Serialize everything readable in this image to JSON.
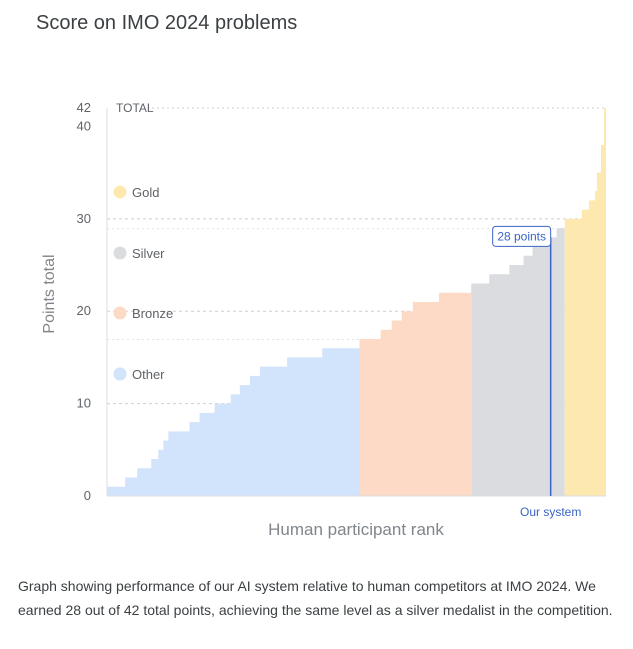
{
  "page": {
    "title": "Score on IMO 2024 problems"
  },
  "caption": "Graph showing performance of our AI system relative to human competitors at IMO 2024. We earned 28 out of 42 total points, achieving the same level as a silver medalist in the competition.",
  "colors": {
    "gold": "#fde9b0",
    "silver": "#dadce0",
    "bronze": "#fcdac6",
    "other": "#d2e3fc",
    "system": "#3b63c4",
    "grid": "#cfcfcf",
    "text": "#5f6368"
  },
  "chart_data": {
    "type": "bar",
    "title": "Score on IMO 2024 problems",
    "xlabel": "Human participant rank",
    "ylabel": "Points total",
    "ylim": [
      0,
      42
    ],
    "yticks": [
      "0",
      "10",
      "20",
      "30",
      "40",
      "42"
    ],
    "total_label": "TOTAL",
    "legend": [
      {
        "name": "Gold",
        "color": "#fde9b0"
      },
      {
        "name": "Silver",
        "color": "#dadce0"
      },
      {
        "name": "Bronze",
        "color": "#fcdac6"
      },
      {
        "name": "Other",
        "color": "#d2e3fc"
      }
    ],
    "series": [
      {
        "name": "Other",
        "steps": [
          [
            0,
            1
          ],
          [
            1.8,
            1
          ],
          [
            1.8,
            2
          ],
          [
            3,
            2
          ],
          [
            3,
            3
          ],
          [
            4.4,
            3
          ],
          [
            4.4,
            4
          ],
          [
            5.1,
            4
          ],
          [
            5.1,
            5
          ],
          [
            5.6,
            5
          ],
          [
            5.6,
            6
          ],
          [
            6.1,
            6
          ],
          [
            6.1,
            7
          ],
          [
            8.2,
            7
          ],
          [
            8.2,
            8
          ],
          [
            9.2,
            8
          ],
          [
            9.2,
            9
          ],
          [
            10.7,
            9
          ],
          [
            10.7,
            10
          ],
          [
            12.3,
            10
          ],
          [
            12.3,
            11
          ],
          [
            13.2,
            11
          ],
          [
            13.2,
            12
          ],
          [
            14.2,
            12
          ],
          [
            14.2,
            13
          ],
          [
            15.2,
            13
          ],
          [
            15.2,
            14
          ],
          [
            17.9,
            14
          ],
          [
            17.9,
            15
          ],
          [
            21.4,
            15
          ],
          [
            21.4,
            16
          ],
          [
            25.1,
            16
          ]
        ]
      },
      {
        "name": "Bronze",
        "steps": [
          [
            25.1,
            17
          ],
          [
            27.2,
            17
          ],
          [
            27.2,
            18
          ],
          [
            28.3,
            18
          ],
          [
            28.3,
            19
          ],
          [
            29.3,
            19
          ],
          [
            29.3,
            20
          ],
          [
            30.4,
            20
          ],
          [
            30.4,
            21
          ],
          [
            33,
            21
          ],
          [
            33,
            22
          ],
          [
            36.2,
            22
          ]
        ]
      },
      {
        "name": "Silver",
        "steps": [
          [
            36.2,
            23
          ],
          [
            38,
            23
          ],
          [
            38,
            24
          ],
          [
            40,
            24
          ],
          [
            40,
            25
          ],
          [
            41.4,
            25
          ],
          [
            41.4,
            26
          ],
          [
            42.3,
            26
          ],
          [
            42.3,
            27
          ],
          [
            43.5,
            27
          ],
          [
            43.5,
            28
          ],
          [
            44.7,
            28
          ],
          [
            44.7,
            29
          ],
          [
            45.5,
            29
          ]
        ]
      },
      {
        "name": "Gold",
        "steps": [
          [
            45.5,
            30
          ],
          [
            47.2,
            30
          ],
          [
            47.2,
            31
          ],
          [
            47.9,
            31
          ],
          [
            47.9,
            32
          ],
          [
            48.5,
            32
          ],
          [
            48.5,
            33
          ],
          [
            48.7,
            33
          ],
          [
            48.7,
            35
          ],
          [
            49.1,
            35
          ],
          [
            49.1,
            38
          ],
          [
            49.4,
            38
          ],
          [
            49.4,
            42
          ],
          [
            49.6,
            42
          ]
        ]
      }
    ],
    "x_range": [
      0,
      49.6
    ],
    "annotation": {
      "label": "28 points",
      "value": 28,
      "rank": 44.1,
      "marker_label": "Our system"
    }
  }
}
